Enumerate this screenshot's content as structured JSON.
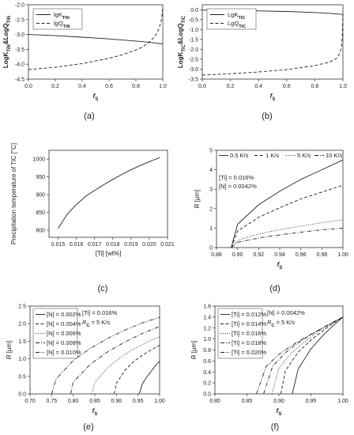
{
  "chart_data": [
    {
      "id": "a",
      "type": "line",
      "panel_label": "(a)",
      "xlabel_main": "f",
      "xlabel_sub": "S",
      "ylabel_parts": [
        [
          "LogK",
          ""
        ],
        [
          "TiN",
          "sub"
        ],
        [
          "&LogQ",
          ""
        ],
        [
          "TiN",
          "sub"
        ]
      ],
      "xlim": [
        0,
        1
      ],
      "ylim": [
        -4.5,
        -2.0
      ],
      "xticks": [
        "0.0",
        "0.2",
        "0.4",
        "0.6",
        "0.8",
        "1.0"
      ],
      "yticks": [
        "-4.5",
        "-4.0",
        "-3.5",
        "-3.0",
        "-2.5",
        "-2.0"
      ],
      "legend": {
        "position": "top-left",
        "text_parts": [
          [
            [
              "lgK",
              ""
            ],
            [
              "TiN",
              "sub"
            ]
          ],
          [
            [
              "lgQ",
              ""
            ],
            [
              "TiN",
              "sub"
            ]
          ]
        ]
      },
      "series": [
        {
          "style": "solid",
          "x": [
            0,
            0.2,
            0.4,
            0.6,
            0.8,
            0.9,
            1.0
          ],
          "y": [
            -3.0,
            -3.04,
            -3.09,
            -3.15,
            -3.22,
            -3.26,
            -3.32
          ]
        },
        {
          "style": "dashed",
          "x": [
            0,
            0.2,
            0.4,
            0.6,
            0.7,
            0.8,
            0.85,
            0.9,
            0.93,
            0.95,
            0.97,
            0.98,
            0.99,
            0.995,
            1.0
          ],
          "y": [
            -4.18,
            -4.1,
            -3.98,
            -3.8,
            -3.68,
            -3.52,
            -3.42,
            -3.25,
            -3.12,
            -3.0,
            -2.82,
            -2.68,
            -2.5,
            -2.3,
            -2.05
          ]
        }
      ]
    },
    {
      "id": "b",
      "type": "line",
      "panel_label": "(b)",
      "xlabel_main": "f",
      "xlabel_sub": "S",
      "ylabel_parts": [
        [
          "LogK",
          ""
        ],
        [
          "TiC",
          "sub"
        ],
        [
          "&LogQ",
          ""
        ],
        [
          "TiC",
          "sub"
        ]
      ],
      "xlim": [
        0,
        1
      ],
      "ylim": [
        -3.5,
        0.25
      ],
      "xticks": [
        "0.0",
        "0.2",
        "0.4",
        "0.6",
        "0.8",
        "1.0"
      ],
      "yticks": [
        "-3.5",
        "-3.0",
        "-2.5",
        "-2.0",
        "-1.5",
        "-1.0",
        "-0.5",
        "0.0"
      ],
      "legend": {
        "position": "top-left",
        "text_parts": [
          [
            [
              "LgK",
              ""
            ],
            [
              "TiC",
              "sub"
            ]
          ],
          [
            [
              "LgQ",
              ""
            ],
            [
              "TiC",
              "sub"
            ]
          ]
        ]
      },
      "series": [
        {
          "style": "solid",
          "x": [
            0,
            0.2,
            0.4,
            0.6,
            0.8,
            0.9,
            1.0
          ],
          "y": [
            -0.02,
            -0.04,
            -0.06,
            -0.09,
            -0.14,
            -0.18,
            -0.24
          ]
        },
        {
          "style": "dashed",
          "x": [
            0,
            0.2,
            0.4,
            0.6,
            0.8,
            0.9,
            0.95,
            0.98,
            0.99,
            0.995,
            1.0
          ],
          "y": [
            -3.3,
            -3.23,
            -3.14,
            -3.02,
            -2.82,
            -2.65,
            -2.48,
            -2.2,
            -1.9,
            -1.4,
            -0.25
          ]
        }
      ]
    },
    {
      "id": "c",
      "type": "line",
      "panel_label": "(c)",
      "xlabel_plain": "[Ti] [wt%]",
      "ylabel_plain": "Precipitation temperature of TiC [°C]",
      "xlim": [
        0.0145,
        0.021
      ],
      "ylim": [
        780,
        1025
      ],
      "xticks": [
        "0.015",
        "0.016",
        "0.017",
        "0.018",
        "0.019",
        "0.020",
        "0.021"
      ],
      "xtick_vals": [
        0.015,
        0.016,
        0.017,
        0.018,
        0.019,
        0.02,
        0.021
      ],
      "yticks": [
        "800",
        "850",
        "900",
        "950",
        "1000"
      ],
      "ytick_vals": [
        800,
        850,
        900,
        950,
        1000
      ],
      "series": [
        {
          "style": "solid",
          "x": [
            0.015,
            0.0155,
            0.016,
            0.0165,
            0.017,
            0.0175,
            0.018,
            0.0185,
            0.019,
            0.0195,
            0.02,
            0.0206
          ],
          "y": [
            805,
            845,
            872,
            895,
            912,
            928,
            943,
            957,
            970,
            982,
            993,
            1005
          ]
        }
      ]
    },
    {
      "id": "d",
      "type": "line",
      "panel_label": "(d)",
      "xlabel_main": "f",
      "xlabel_sub": "S",
      "ylabel_plain": "R [μm]",
      "xlim": [
        0.88,
        1.0
      ],
      "ylim": [
        0,
        5
      ],
      "xticks": [
        "0.88",
        "0.90",
        "0.92",
        "0.94",
        "0.96",
        "0.98",
        "1.00"
      ],
      "xtick_vals": [
        0.88,
        0.9,
        0.92,
        0.94,
        0.96,
        0.98,
        1.0
      ],
      "yticks": [
        "0",
        "1",
        "2",
        "3",
        "4",
        "5"
      ],
      "ytick_vals": [
        0,
        1,
        2,
        3,
        4,
        5
      ],
      "legend": {
        "position": "top",
        "items": [
          "0.5 K/s",
          "1 K/s",
          "5 K/s",
          "10 K/s"
        ]
      },
      "annotations": [
        "[Ti] = 0.016%",
        "[N] = 0.0042%"
      ],
      "series": [
        {
          "name": "0.5 K/s",
          "style": "solid",
          "x": [
            0.894,
            0.9,
            0.92,
            0.94,
            0.96,
            0.98,
            1.0
          ],
          "y": [
            0,
            1.2,
            2.2,
            2.9,
            3.5,
            4.0,
            4.5
          ]
        },
        {
          "name": "1 K/s",
          "style": "dashed",
          "x": [
            0.894,
            0.9,
            0.92,
            0.94,
            0.96,
            0.98,
            1.0
          ],
          "y": [
            0,
            0.85,
            1.55,
            2.05,
            2.5,
            2.85,
            3.2
          ]
        },
        {
          "name": "5 K/s",
          "style": "dotted",
          "x": [
            0.894,
            0.9,
            0.92,
            0.94,
            0.96,
            0.98,
            1.0
          ],
          "y": [
            0,
            0.38,
            0.7,
            0.92,
            1.1,
            1.28,
            1.42
          ]
        },
        {
          "name": "10 K/s",
          "style": "dashdot",
          "x": [
            0.894,
            0.9,
            0.92,
            0.94,
            0.96,
            0.98,
            1.0
          ],
          "y": [
            0,
            0.27,
            0.49,
            0.65,
            0.79,
            0.91,
            1.0
          ]
        }
      ]
    },
    {
      "id": "e",
      "type": "line",
      "panel_label": "(e)",
      "xlabel_main": "f",
      "xlabel_sub": "S",
      "ylabel_plain": "R [μm]",
      "xlim": [
        0.7,
        1.0
      ],
      "ylim": [
        0,
        2.5
      ],
      "xticks": [
        "0.70",
        "0.75",
        "0.80",
        "0.85",
        "0.90",
        "0.95",
        "1.00"
      ],
      "xtick_vals": [
        0.7,
        0.75,
        0.8,
        0.85,
        0.9,
        0.95,
        1.0
      ],
      "yticks": [
        "0.0",
        "0.5",
        "1.0",
        "1.5",
        "2.0",
        "2.5"
      ],
      "ytick_vals": [
        0,
        0.5,
        1.0,
        1.5,
        2.0,
        2.5
      ],
      "legend": {
        "position": "top-left",
        "items": [
          "[N] = 0.002%",
          "[N] = 0.004%",
          "[N] = 0.006%",
          "[N] = 0.008%",
          "[N] = 0.010%"
        ]
      },
      "annotation_parts": [
        [
          [
            "[Ti] = 0.016%",
            ""
          ]
        ],
        [
          [
            "R",
            "ital"
          ],
          [
            "C",
            "sub"
          ],
          [
            " = 5 K/s",
            ""
          ]
        ]
      ],
      "series": [
        {
          "name": "[N] = 0.002%",
          "style": "solid",
          "x": [
            0.953,
            0.96,
            0.97,
            0.98,
            0.99,
            1.0
          ],
          "y": [
            0,
            0.28,
            0.48,
            0.64,
            0.8,
            0.93
          ]
        },
        {
          "name": "[N] = 0.004%",
          "style": "dashed",
          "x": [
            0.895,
            0.9,
            0.92,
            0.94,
            0.96,
            0.98,
            1.0
          ],
          "y": [
            0,
            0.3,
            0.68,
            0.92,
            1.1,
            1.25,
            1.38
          ]
        },
        {
          "name": "[N] = 0.006%",
          "style": "dotted",
          "x": [
            0.843,
            0.85,
            0.88,
            0.91,
            0.94,
            0.97,
            1.0
          ],
          "y": [
            0,
            0.33,
            0.75,
            1.04,
            1.28,
            1.47,
            1.62
          ]
        },
        {
          "name": "[N] = 0.008%",
          "style": "dashdot",
          "x": [
            0.794,
            0.8,
            0.84,
            0.88,
            0.92,
            0.96,
            1.0
          ],
          "y": [
            0,
            0.33,
            0.85,
            1.2,
            1.48,
            1.72,
            1.92
          ]
        },
        {
          "name": "[N] = 0.010%",
          "style": "dashdotdot",
          "x": [
            0.75,
            0.76,
            0.8,
            0.84,
            0.88,
            0.92,
            0.96,
            1.0
          ],
          "y": [
            0,
            0.42,
            0.95,
            1.3,
            1.58,
            1.82,
            2.02,
            2.18
          ]
        }
      ]
    },
    {
      "id": "f",
      "type": "line",
      "panel_label": "(f)",
      "xlabel_main": "f",
      "xlabel_sub": "S",
      "ylabel_plain": "R [μm]",
      "xlim": [
        0.8,
        1.0
      ],
      "ylim": [
        0,
        1.6
      ],
      "xticks": [
        "0.80",
        "0.85",
        "0.90",
        "0.95",
        "1.00"
      ],
      "xtick_vals": [
        0.8,
        0.85,
        0.9,
        0.95,
        1.0
      ],
      "yticks": [
        "0.0",
        "0.2",
        "0.4",
        "0.6",
        "0.8",
        "1.0",
        "1.2",
        "1.4",
        "1.6"
      ],
      "ytick_vals": [
        0,
        0.2,
        0.4,
        0.6,
        0.8,
        1.0,
        1.2,
        1.4,
        1.6
      ],
      "legend": {
        "position": "top-left",
        "items": [
          "[Ti] = 0.012%",
          "[Ti] = 0.014%",
          "[Ti] = 0.016%",
          "[Ti] = 0.018%",
          "[Ti] = 0.020%"
        ]
      },
      "annotation_parts": [
        [
          [
            "[N] = 0.0042%",
            ""
          ]
        ],
        [
          [
            "R",
            "ital"
          ],
          [
            "C",
            "sub"
          ],
          [
            " = 5 K/s",
            ""
          ]
        ]
      ],
      "series": [
        {
          "name": "[Ti] = 0.012%",
          "style": "solid",
          "x": [
            0.921,
            0.93,
            0.95,
            0.97,
            0.99,
            1.0
          ],
          "y": [
            0,
            0.45,
            0.82,
            1.08,
            1.3,
            1.4
          ]
        },
        {
          "name": "[Ti] = 0.014%",
          "style": "dashed",
          "x": [
            0.903,
            0.91,
            0.93,
            0.95,
            0.97,
            0.99,
            1.0
          ],
          "y": [
            0,
            0.42,
            0.76,
            0.98,
            1.16,
            1.33,
            1.4
          ]
        },
        {
          "name": "[Ti] = 0.016%",
          "style": "dotted",
          "x": [
            0.889,
            0.9,
            0.92,
            0.94,
            0.96,
            0.98,
            1.0
          ],
          "y": [
            0,
            0.47,
            0.75,
            0.95,
            1.12,
            1.27,
            1.4
          ]
        },
        {
          "name": "[Ti] = 0.018%",
          "style": "dashdot",
          "x": [
            0.876,
            0.89,
            0.91,
            0.93,
            0.95,
            0.97,
            1.0
          ],
          "y": [
            0,
            0.5,
            0.75,
            0.93,
            1.08,
            1.21,
            1.4
          ]
        },
        {
          "name": "[Ti] = 0.020%",
          "style": "dashdotdot",
          "x": [
            0.865,
            0.88,
            0.9,
            0.92,
            0.94,
            0.96,
            0.98,
            1.0
          ],
          "y": [
            0,
            0.5,
            0.72,
            0.88,
            1.02,
            1.15,
            1.28,
            1.4
          ]
        }
      ]
    }
  ]
}
